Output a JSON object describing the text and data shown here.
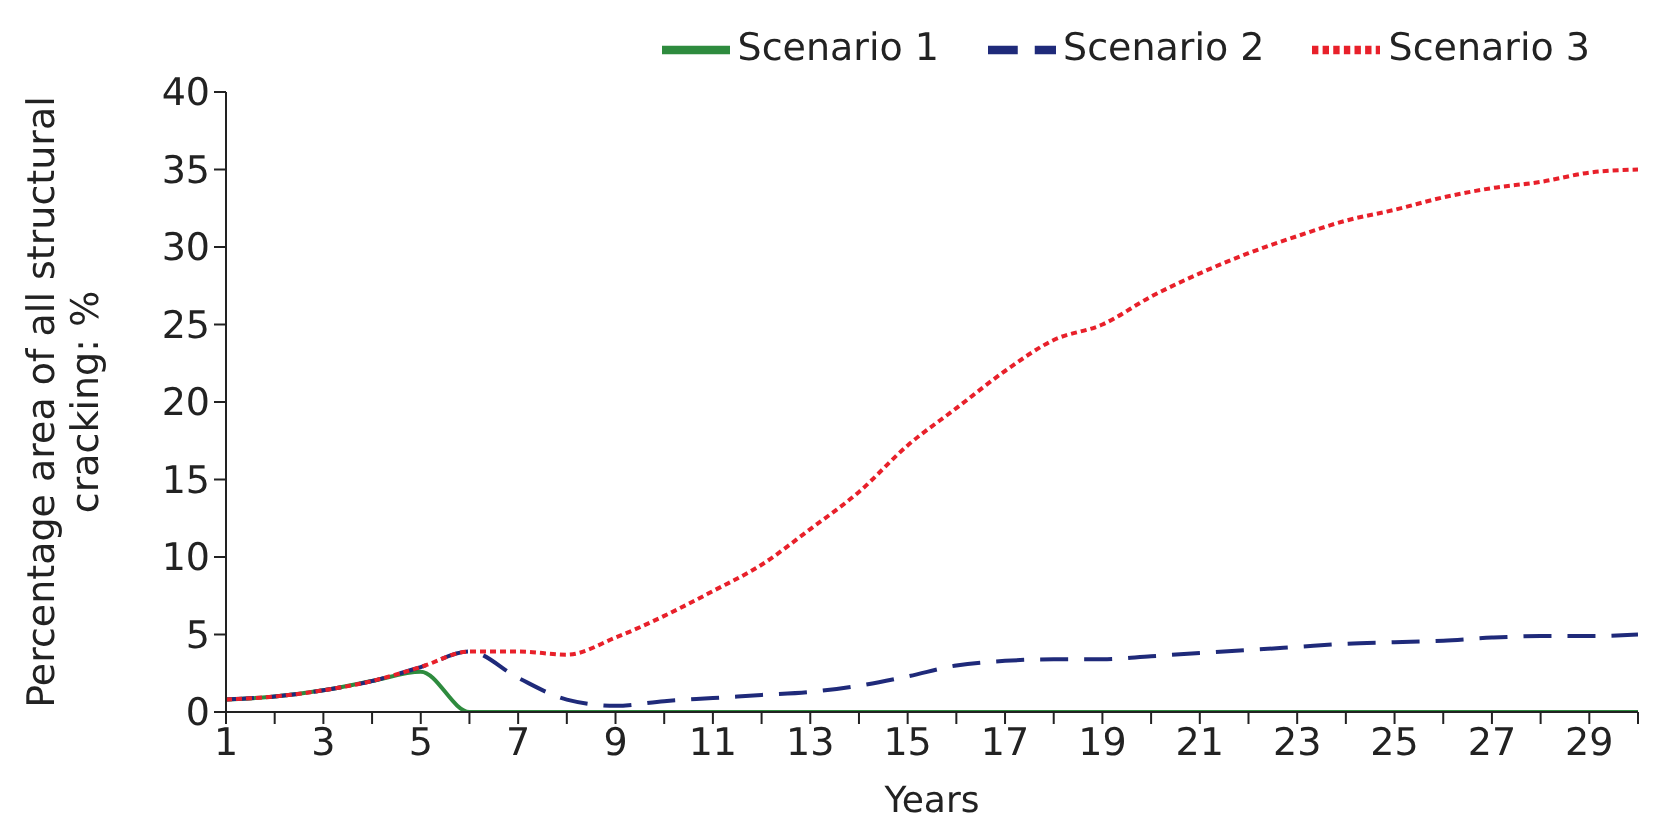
{
  "chart_data": {
    "type": "line",
    "xlabel": "Years",
    "ylabel": "Percentage area of all structural cracking: %",
    "x": [
      1,
      2,
      3,
      4,
      5,
      6,
      7,
      8,
      9,
      10,
      11,
      12,
      13,
      14,
      15,
      16,
      17,
      18,
      19,
      20,
      21,
      22,
      23,
      24,
      25,
      26,
      27,
      28,
      29,
      30
    ],
    "series": [
      {
        "name": "Scenario 1",
        "color": "#2e8b3e",
        "line_style": "solid",
        "values": [
          0.8,
          1.0,
          1.4,
          2.0,
          2.6,
          0,
          0,
          0,
          0,
          0,
          0,
          0,
          0,
          0,
          0,
          0,
          0,
          0,
          0,
          0,
          0,
          0,
          0,
          0,
          0,
          0,
          0,
          0,
          0,
          0
        ]
      },
      {
        "name": "Scenario 2",
        "color": "#1f2a7a",
        "line_style": "dashed",
        "values": [
          0.8,
          1.0,
          1.4,
          2.0,
          2.9,
          3.9,
          2.2,
          0.8,
          0.4,
          0.7,
          0.9,
          1.1,
          1.3,
          1.7,
          2.3,
          3.0,
          3.3,
          3.4,
          3.4,
          3.6,
          3.8,
          4.0,
          4.2,
          4.4,
          4.5,
          4.6,
          4.8,
          4.9,
          4.9,
          5.0
        ]
      },
      {
        "name": "Scenario 3",
        "color": "#e8202a",
        "line_style": "dotted",
        "values": [
          0.8,
          1.0,
          1.4,
          2.0,
          2.9,
          3.9,
          3.9,
          3.7,
          4.8,
          6.2,
          7.8,
          9.5,
          11.8,
          14.2,
          17.2,
          19.6,
          22.0,
          24.0,
          25.0,
          26.8,
          28.3,
          29.6,
          30.7,
          31.7,
          32.4,
          33.2,
          33.8,
          34.2,
          34.8,
          35.0
        ]
      }
    ],
    "xlim": [
      1,
      30
    ],
    "xticks": [
      1,
      {
        "value": 2,
        "label": null
      },
      3,
      {
        "value": 4,
        "label": null
      },
      5,
      {
        "value": 6,
        "label": null
      },
      7,
      {
        "value": 8,
        "label": null
      },
      9,
      {
        "value": 10,
        "label": null
      },
      11,
      {
        "value": 12,
        "label": null
      },
      13,
      {
        "value": 14,
        "label": null
      },
      15,
      {
        "value": 16,
        "label": null
      },
      17,
      {
        "value": 18,
        "label": null
      },
      19,
      {
        "value": 20,
        "label": null
      },
      21,
      {
        "value": 22,
        "label": null
      },
      23,
      {
        "value": 24,
        "label": null
      },
      25,
      {
        "value": 26,
        "label": null
      },
      27,
      {
        "value": 28,
        "label": null
      },
      29,
      {
        "value": 30,
        "label": null
      }
    ],
    "ylim": [
      0,
      40
    ],
    "yticks": [
      0,
      5,
      10,
      15,
      20,
      25,
      30,
      35,
      40
    ],
    "grid": false,
    "legend": "top",
    "marker": "none"
  }
}
